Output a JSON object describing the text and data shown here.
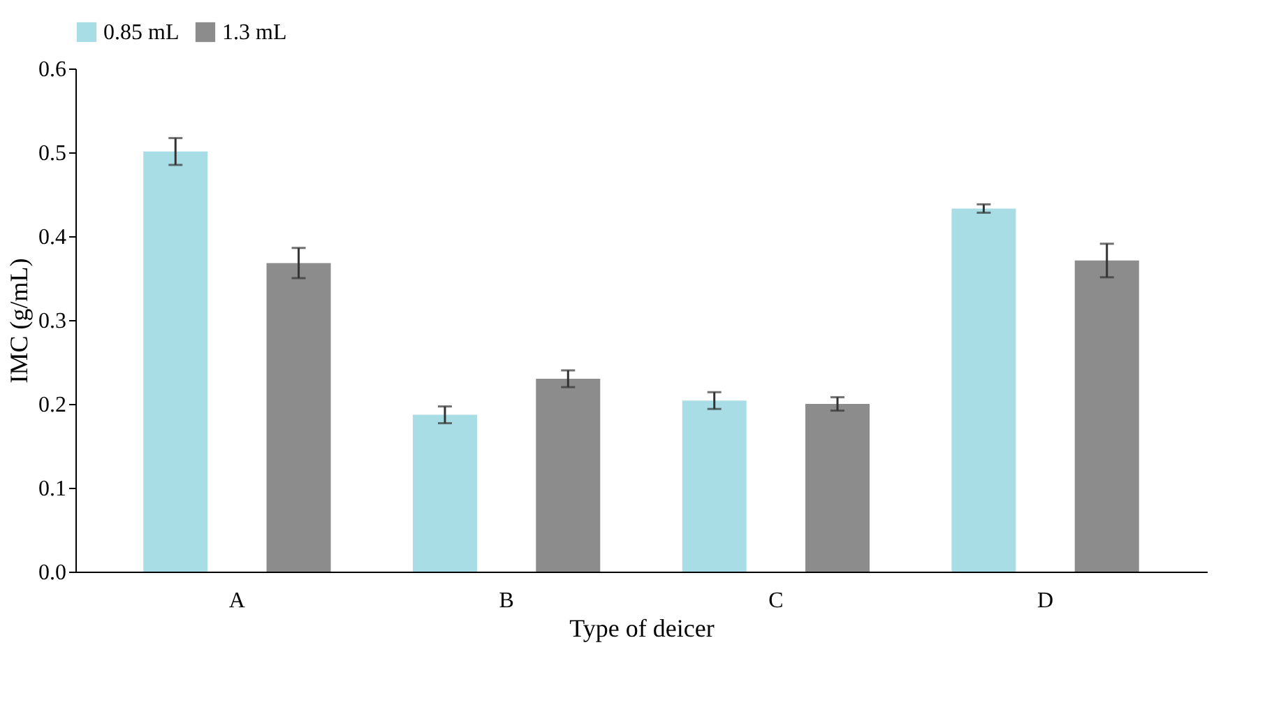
{
  "chart_data": {
    "type": "bar",
    "xlabel": "Type of deicer",
    "ylabel": "IMC (g/mL)",
    "categories": [
      "A",
      "B",
      "C",
      "D"
    ],
    "series": [
      {
        "name": "0.85 mL",
        "color": "#a8dde6",
        "values": [
          0.501,
          0.187,
          0.204,
          0.433
        ],
        "errors": [
          0.016,
          0.01,
          0.01,
          0.005
        ]
      },
      {
        "name": "1.3 mL",
        "color": "#8c8c8c",
        "values": [
          0.368,
          0.23,
          0.2,
          0.371
        ],
        "errors": [
          0.018,
          0.01,
          0.008,
          0.02
        ]
      }
    ],
    "ylim": [
      0,
      0.6
    ],
    "yticks": [
      {
        "value": 0,
        "label": "0.0"
      },
      0.1,
      0.2,
      0.3,
      0.4,
      0.5,
      0.6
    ],
    "grid": false,
    "legend": "top"
  }
}
